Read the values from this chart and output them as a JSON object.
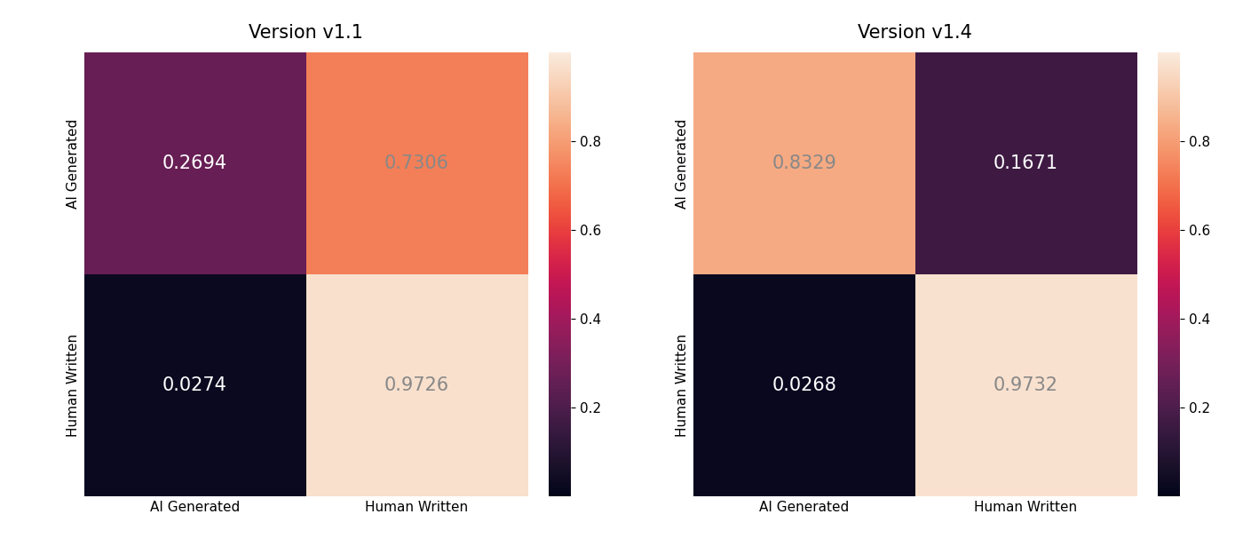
{
  "v1_title": "Version v1.1",
  "v2_title": "Version v1.4",
  "v1_matrix": [
    [
      0.2694,
      0.7306
    ],
    [
      0.0274,
      0.9726
    ]
  ],
  "v2_matrix": [
    [
      0.8329,
      0.1671
    ],
    [
      0.0268,
      0.9732
    ]
  ],
  "xlabel_labels": [
    "AI Generated",
    "Human Written"
  ],
  "ylabel_labels": [
    "AI Generated",
    "Human Written"
  ],
  "vmin": 0.0,
  "vmax": 1.0,
  "text_color_light": "white",
  "text_color_dark": "#888888",
  "text_threshold": 0.5,
  "cell_fontsize": 15,
  "title_fontsize": 15,
  "tick_fontsize": 11,
  "cbar_ticks": [
    0.2,
    0.4,
    0.6,
    0.8
  ],
  "background_color": "white",
  "figure_size": [
    14.0,
    6.06
  ],
  "dpi": 100
}
